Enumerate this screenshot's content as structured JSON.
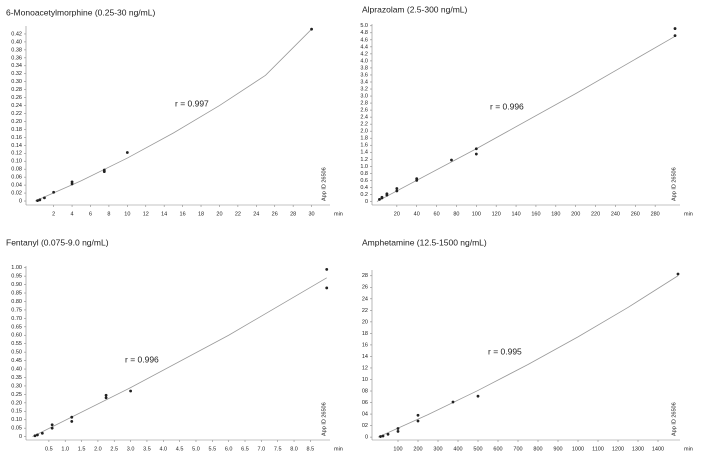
{
  "chart_data": [
    {
      "type": "scatter",
      "title": "6-Monoacetylmorphine (0.25-30 ng/mL)",
      "annotation": "r = 0.997",
      "xlabel": "min",
      "note": "App ID 26506",
      "x": [
        0.25,
        0.5,
        1,
        2,
        4,
        4,
        7.5,
        7.5,
        10,
        30
      ],
      "series": [
        {
          "color": "#222222",
          "values": [
            0.001,
            0.003,
            0.008,
            0.022,
            0.043,
            0.048,
            0.074,
            0.078,
            0.122,
            0.432
          ]
        }
      ],
      "fit": {
        "color": "#999999",
        "x": [
          0,
          5,
          10,
          15,
          20,
          25,
          30
        ],
        "values": [
          0,
          0.051,
          0.108,
          0.171,
          0.24,
          0.316,
          0.432
        ]
      },
      "xlim": [
        -1,
        32
      ],
      "ylim": [
        -0.01,
        0.44
      ],
      "xticks": [
        2,
        4,
        6,
        8,
        10,
        12,
        14,
        16,
        18,
        20,
        22,
        24,
        26,
        28,
        30
      ],
      "yticks": [
        0,
        0.02,
        0.04,
        0.06,
        0.08,
        {
          "value": 0.1,
          "label": "0.10"
        },
        0.12,
        0.14,
        0.16,
        0.18,
        {
          "value": 0.2,
          "label": "0.20"
        },
        0.22,
        0.24,
        0.26,
        0.28,
        {
          "value": 0.3,
          "label": "0.30"
        },
        0.32,
        0.34,
        0.36,
        0.38,
        {
          "value": 0.4,
          "label": "0.40"
        },
        0.42
      ]
    },
    {
      "type": "scatter",
      "title": "Alprazolam (2.5-300 ng/mL)",
      "annotation": "r = 0.996",
      "xlabel": "min",
      "note": "App ID 26506",
      "x": [
        2.5,
        5,
        5,
        10,
        10,
        20,
        20,
        40,
        40,
        75,
        100,
        100,
        300,
        300
      ],
      "series": [
        {
          "color": "#222222",
          "values": [
            0.06,
            0.1,
            0.12,
            0.18,
            0.22,
            0.3,
            0.37,
            0.6,
            0.65,
            1.18,
            1.35,
            1.5,
            4.92,
            4.72
          ]
        }
      ],
      "fit": {
        "color": "#999999",
        "x": [
          0,
          100,
          200,
          300
        ],
        "values": [
          0,
          1.5,
          3.07,
          4.7
        ]
      },
      "xlim": [
        -5,
        305
      ],
      "ylim": [
        -0.1,
        5.05
      ],
      "xticks": [
        20,
        40,
        60,
        80,
        100,
        120,
        140,
        160,
        180,
        200,
        220,
        240,
        260,
        280
      ],
      "yticks": [
        0,
        0.2,
        0.4,
        0.6,
        0.8,
        {
          "value": 1,
          "label": "1.0"
        },
        1.2,
        1.4,
        1.6,
        1.8,
        {
          "value": 2,
          "label": "2.0"
        },
        2.2,
        2.4,
        2.6,
        2.8,
        {
          "value": 3,
          "label": "3.0"
        },
        3.2,
        3.4,
        3.6,
        3.8,
        {
          "value": 4,
          "label": "4.0"
        },
        4.2,
        4.4,
        4.6,
        4.8,
        {
          "value": 5,
          "label": "5.0"
        }
      ]
    },
    {
      "type": "scatter",
      "title": "Fentanyl (0.075-9.0 ng/mL)",
      "annotation": "r = 0.996",
      "xlabel": "min",
      "note": "App ID 26506",
      "x": [
        0.075,
        0.15,
        0.3,
        0.6,
        0.6,
        1.2,
        1.2,
        2.25,
        2.25,
        3,
        9,
        9
      ],
      "series": [
        {
          "color": "#222222",
          "values": [
            0.005,
            0.01,
            0.02,
            0.05,
            0.07,
            0.09,
            0.115,
            0.23,
            0.245,
            0.27,
            0.99,
            0.88
          ]
        }
      ],
      "fit": {
        "color": "#999999",
        "x": [
          0,
          3,
          6,
          9
        ],
        "values": [
          0,
          0.29,
          0.6,
          0.94
        ]
      },
      "xlim": [
        -0.2,
        9.1
      ],
      "ylim": [
        -0.02,
        1.01
      ],
      "xticks": [
        0.5,
        {
          "value": 1,
          "label": "1.0"
        },
        1.5,
        {
          "value": 2,
          "label": "2.0"
        },
        2.5,
        {
          "value": 3,
          "label": "3.0"
        },
        3.5,
        {
          "value": 4,
          "label": "4.0"
        },
        4.5,
        {
          "value": 5,
          "label": "5.0"
        },
        5.5,
        {
          "value": 6,
          "label": "6.0"
        },
        6.5,
        {
          "value": 7,
          "label": "7.0"
        },
        7.5,
        {
          "value": 8,
          "label": "8.0"
        },
        8.5
      ],
      "yticks": [
        0,
        0.05,
        {
          "value": 0.1,
          "label": "0.10"
        },
        0.15,
        {
          "value": 0.2,
          "label": "0.20"
        },
        0.25,
        {
          "value": 0.3,
          "label": "0.30"
        },
        0.35,
        {
          "value": 0.4,
          "label": "0.40"
        },
        0.45,
        {
          "value": 0.5,
          "label": "0.50"
        },
        0.55,
        {
          "value": 0.6,
          "label": "0.60"
        },
        0.65,
        {
          "value": 0.7,
          "label": "0.70"
        },
        0.75,
        {
          "value": 0.8,
          "label": "0.80"
        },
        0.85,
        {
          "value": 0.9,
          "label": "0.90"
        },
        0.95,
        {
          "value": 1,
          "label": "1.00"
        }
      ]
    },
    {
      "type": "scatter",
      "title": "Amphetamine (12.5-1500 ng/mL)",
      "annotation": "r = 0.995",
      "xlabel": "min",
      "note": "App ID 26506",
      "x": [
        12.5,
        25,
        50,
        100,
        100,
        200,
        200,
        375,
        500,
        1500
      ],
      "series": [
        {
          "color": "#222222",
          "values": [
            0.1,
            0.2,
            0.5,
            1.0,
            1.5,
            2.8,
            3.8,
            6.1,
            7.1,
            28.3
          ]
        }
      ],
      "fit": {
        "color": "#999999",
        "x": [
          0,
          250,
          500,
          750,
          1000,
          1250,
          1500
        ],
        "values": [
          0,
          3.9,
          8.1,
          12.6,
          17.4,
          22.5,
          28
        ]
      },
      "xlim": [
        -30,
        1510
      ],
      "ylim": [
        -0.5,
        29
      ],
      "xticks": [
        100,
        200,
        300,
        400,
        500,
        600,
        700,
        800,
        900,
        1000,
        1100,
        1200,
        1300,
        1400
      ],
      "yticks": [
        0,
        {
          "value": 2,
          "label": "02"
        },
        {
          "value": 4,
          "label": "04"
        },
        {
          "value": 6,
          "label": "06"
        },
        {
          "value": 8,
          "label": "08"
        },
        10,
        12,
        14,
        16,
        18,
        20,
        22,
        24,
        26,
        28
      ]
    }
  ]
}
